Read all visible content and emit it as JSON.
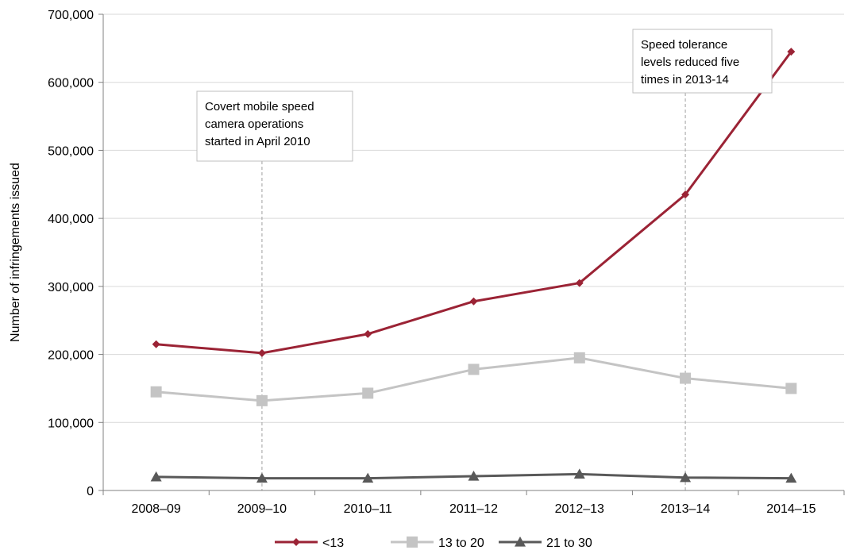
{
  "chart_data": {
    "type": "line",
    "title": "",
    "xlabel": "",
    "ylabel": "Number of infringements issued",
    "ylim": [
      0,
      700000
    ],
    "yticks": [
      0,
      100000,
      200000,
      300000,
      400000,
      500000,
      600000,
      700000
    ],
    "ytick_labels": [
      "0",
      "100,000",
      "200,000",
      "300,000",
      "400,000",
      "500,000",
      "600,000",
      "700,000"
    ],
    "grid": true,
    "legend_position": "bottom",
    "categories": [
      "2008–09",
      "2009–10",
      "2010–11",
      "2011–12",
      "2012–13",
      "2013–14",
      "2014–15"
    ],
    "series": [
      {
        "name": "<13",
        "color": "#9b2335",
        "marker": "diamond",
        "values": [
          215000,
          202000,
          230000,
          278000,
          305000,
          435000,
          645000
        ]
      },
      {
        "name": "13 to 20",
        "color": "#c4c4c4",
        "marker": "square",
        "values": [
          145000,
          132000,
          143000,
          178000,
          195000,
          165000,
          150000
        ]
      },
      {
        "name": "21 to 30",
        "color": "#595959",
        "marker": "triangle",
        "values": [
          20000,
          18000,
          18000,
          21000,
          24000,
          19000,
          18000
        ]
      }
    ],
    "annotations": [
      {
        "category": "2009–10",
        "lines": [
          "Covert mobile speed",
          "camera operations",
          "started in April 2010"
        ]
      },
      {
        "category": "2013–14",
        "lines": [
          "Speed tolerance",
          "levels reduced five",
          "times in 2013-14"
        ]
      }
    ]
  }
}
